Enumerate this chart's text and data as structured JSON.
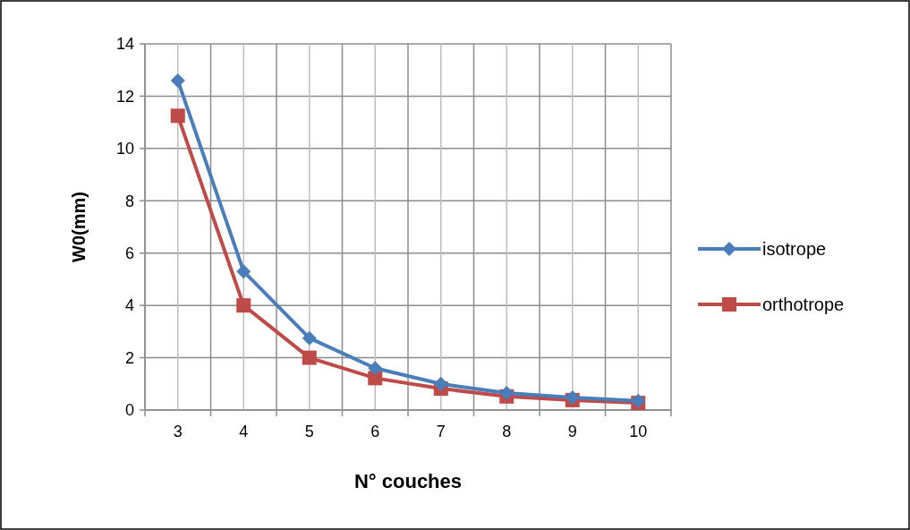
{
  "chart_data": {
    "type": "line",
    "xlabel": "N° couches",
    "ylabel": "W0(mm)",
    "categories": [
      "3",
      "4",
      "5",
      "6",
      "7",
      "8",
      "9",
      "10"
    ],
    "series": [
      {
        "name": "isotrope",
        "color": "#4a7ebb",
        "marker": "diamond",
        "values": [
          12.6,
          5.3,
          2.75,
          1.6,
          1.0,
          0.65,
          0.48,
          0.35
        ]
      },
      {
        "name": "orthotrope",
        "color": "#be4b48",
        "marker": "square",
        "values": [
          11.25,
          4.0,
          2.0,
          1.22,
          0.82,
          0.52,
          0.38,
          0.27
        ]
      }
    ],
    "ylim": [
      0,
      14
    ],
    "yticks": [
      0,
      2,
      4,
      6,
      8,
      10,
      12,
      14
    ],
    "grid": true,
    "legend": "right",
    "line_style": "solid"
  }
}
